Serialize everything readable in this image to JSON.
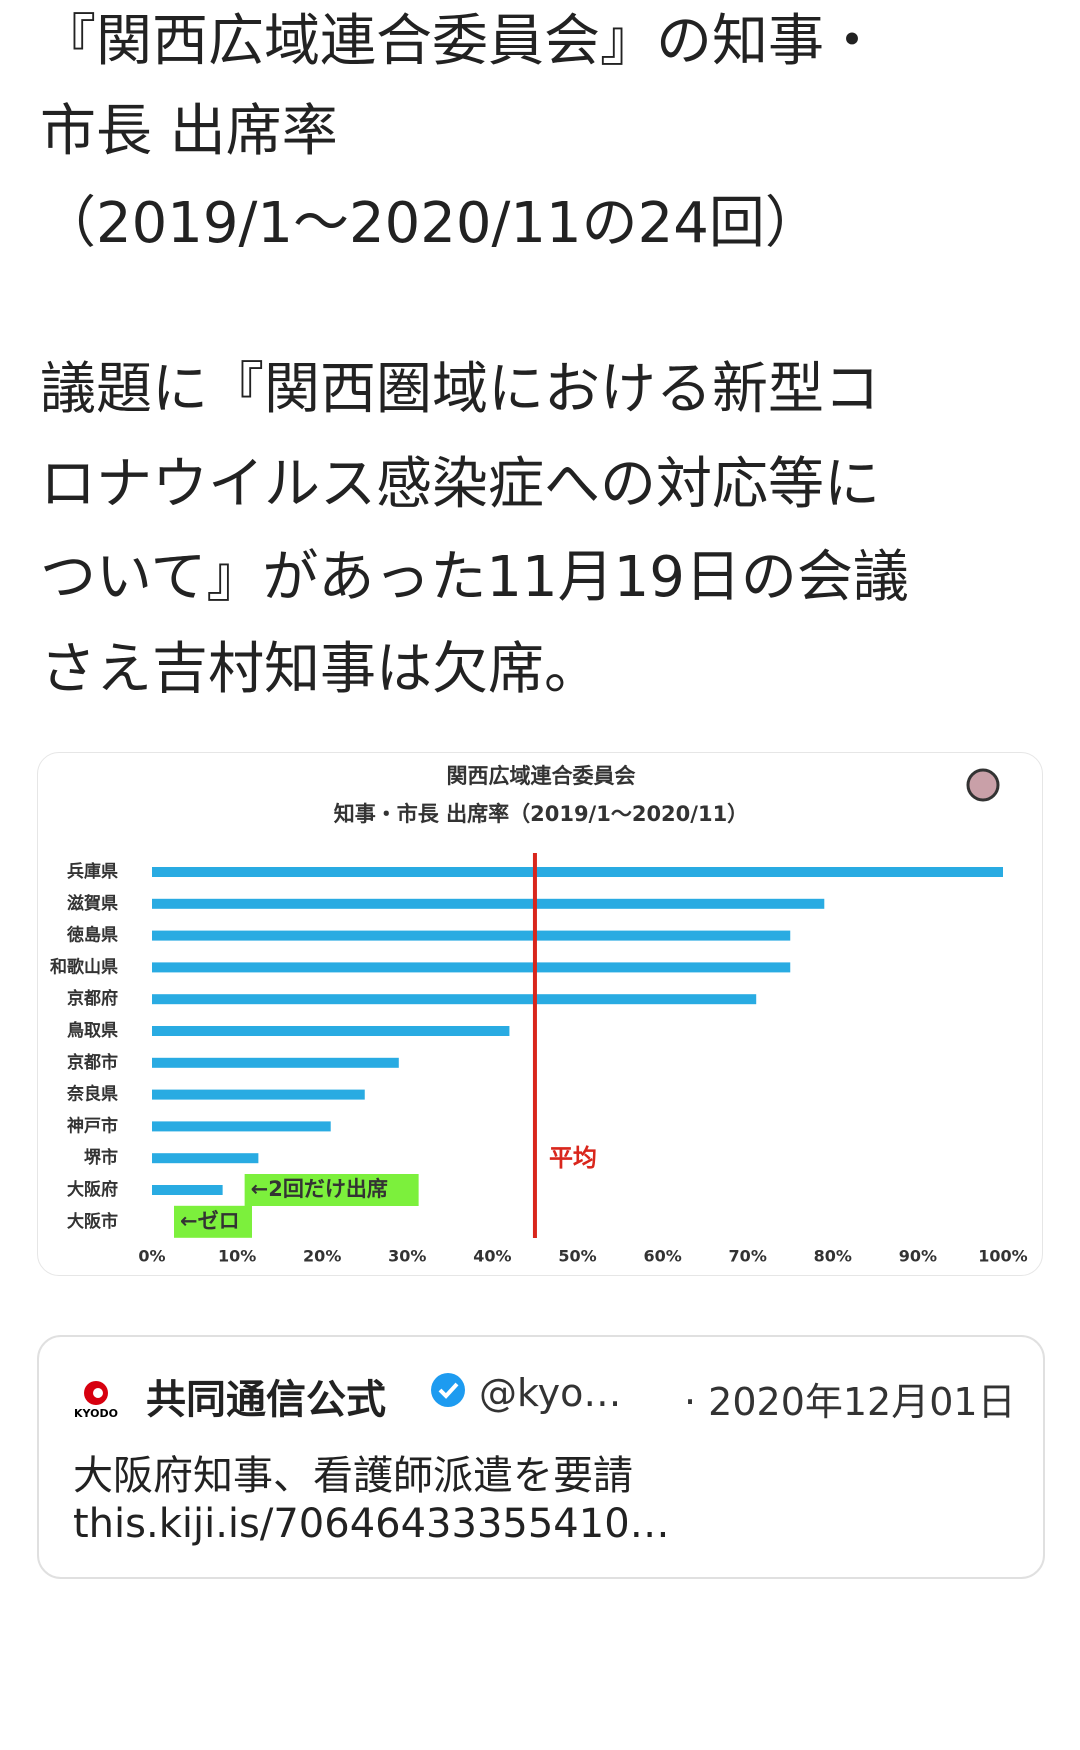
{
  "tweet": {
    "text_lines": [
      "『関西広域連合委員会』の知事・",
      "市長 出席率",
      "（2019/1～2020/11の24回）",
      "議題に『関西圏域における新型コ",
      "ロナウイルス感染症への対応等に",
      "ついて』があった11月19日の会議",
      "さえ吉村知事は欠席。"
    ]
  },
  "chart_data": {
    "type": "bar",
    "orientation": "horizontal",
    "title": [
      "関西広域連合委員会",
      "知事・市長 出席率（2019/1～2020/11）"
    ],
    "categories": [
      "兵庫県",
      "滋賀県",
      "徳島県",
      "和歌山県",
      "京都府",
      "鳥取県",
      "京都市",
      "奈良県",
      "神戸市",
      "堺市",
      "大阪府",
      "大阪市"
    ],
    "values": [
      100,
      79,
      75,
      75,
      71,
      42,
      29,
      25,
      21,
      12.5,
      8.3,
      0
    ],
    "value_notes": [
      null,
      null,
      null,
      null,
      null,
      null,
      null,
      null,
      null,
      null,
      "←2回だけ出席",
      "←ゼロ"
    ],
    "color": "#29abe2",
    "note_color": "#7cf03c",
    "average": {
      "value": 45,
      "label": "平均",
      "color": "#d9261c"
    },
    "xlim": [
      0,
      100
    ],
    "xticks": [
      {
        "value": 0,
        "label": "0%"
      },
      {
        "value": 10,
        "label": "10%"
      },
      {
        "value": 20,
        "label": "20%"
      },
      {
        "value": 30,
        "label": "30%"
      },
      {
        "value": 40,
        "label": "40%"
      },
      {
        "value": 50,
        "label": "50%"
      },
      {
        "value": 60,
        "label": "60%"
      },
      {
        "value": 70,
        "label": "70%"
      },
      {
        "value": 80,
        "label": "80%"
      },
      {
        "value": 90,
        "label": "90%"
      },
      {
        "value": 100,
        "label": "100%"
      }
    ]
  },
  "quote": {
    "logo": "KYODO",
    "name": "共同通信公式",
    "handle": "@kyo…",
    "date": "· 2020年12月01日",
    "text": "大阪府知事、看護師派遣を要請",
    "link": "this.kiji.is/70646433355410…"
  }
}
